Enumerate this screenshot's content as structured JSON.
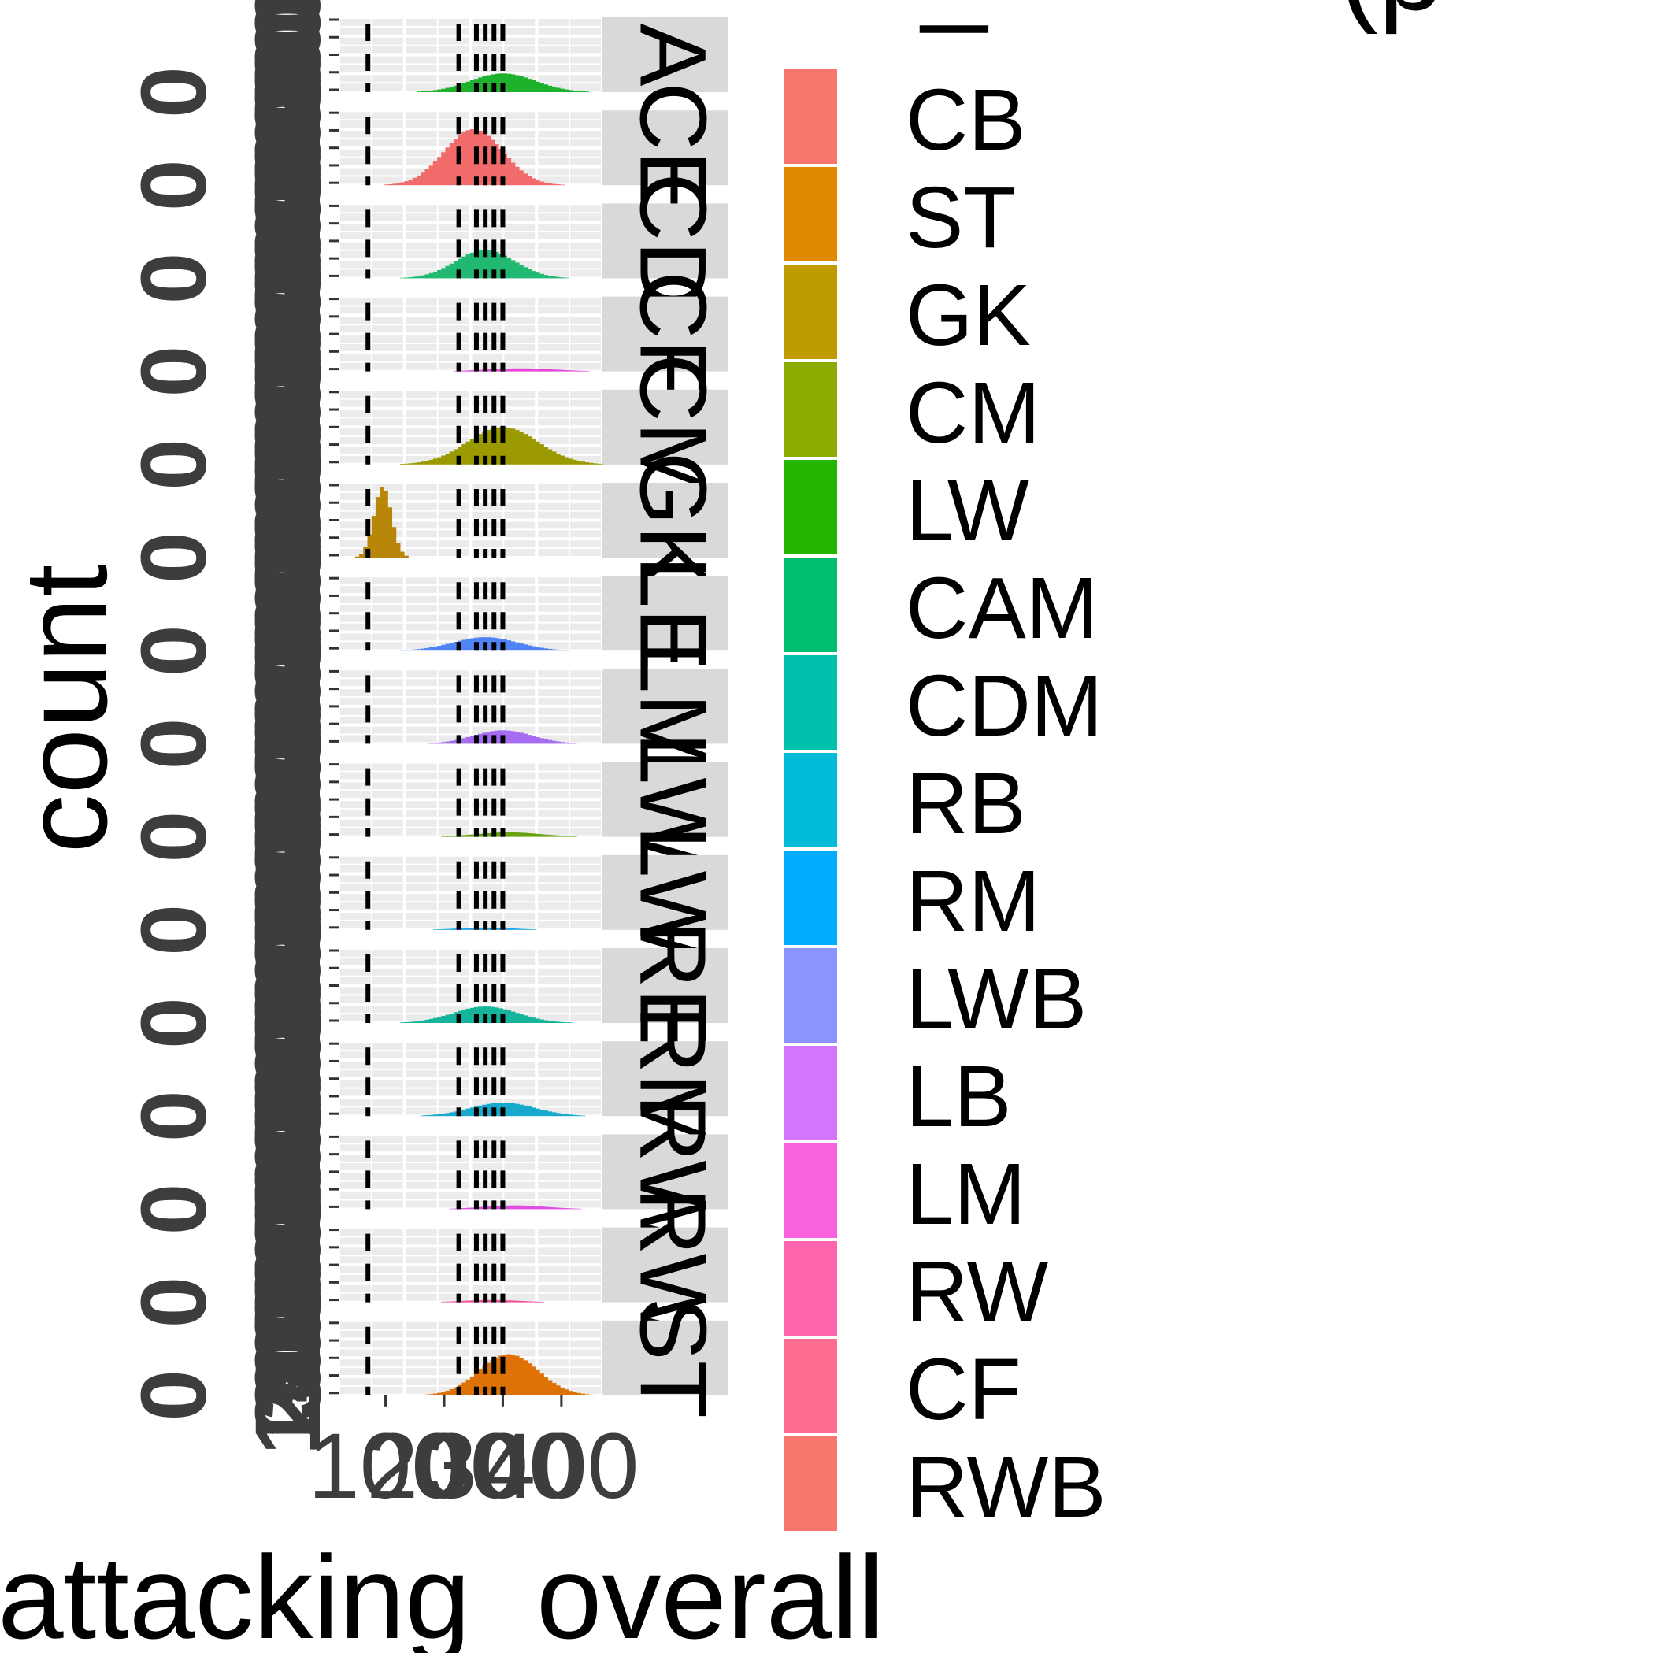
{
  "chart_data": {
    "type": "histogram",
    "xlabel": "attacking_overall",
    "ylabel": "count",
    "x_tick_labels": [
      "100",
      "200",
      "300",
      "400"
    ],
    "y_tick_labels": [
      "0",
      "100",
      "200",
      "300",
      "400"
    ],
    "legend_title_fragments": [
      "_",
      "(p"
    ],
    "facets": [
      {
        "label": "CAM",
        "series": "CAM",
        "shown": "A",
        "peak_x": 300,
        "spread": 55,
        "max_frac": 0.25
      },
      {
        "label": "CB",
        "series": "CB",
        "shown": "CE",
        "peak_x": 250,
        "spread": 50,
        "max_frac": 0.75
      },
      {
        "label": "CDM",
        "series": "CDM",
        "shown": "CD",
        "peak_x": 270,
        "spread": 50,
        "max_frac": 0.38
      },
      {
        "label": "CF",
        "series": "CF",
        "shown": "CF",
        "peak_x": 330,
        "spread": 60,
        "max_frac": 0.04
      },
      {
        "label": "CM",
        "series": "CM",
        "shown": "CM",
        "peak_x": 300,
        "spread": 60,
        "max_frac": 0.5
      },
      {
        "label": "GK",
        "series": "GK",
        "shown": "GK",
        "peak_x": 95,
        "spread": 15,
        "max_frac": 0.95
      },
      {
        "label": "LB",
        "series": "LB",
        "shown": "LE",
        "peak_x": 270,
        "spread": 55,
        "max_frac": 0.18
      },
      {
        "label": "LM",
        "series": "LM",
        "shown": "LM",
        "peak_x": 300,
        "spread": 50,
        "max_frac": 0.18
      },
      {
        "label": "LW",
        "series": "LW",
        "shown": "LW",
        "peak_x": 310,
        "spread": 55,
        "max_frac": 0.06
      },
      {
        "label": "LWB",
        "series": "LWB",
        "shown": "LW",
        "peak_x": 270,
        "spread": 50,
        "max_frac": 0.03
      },
      {
        "label": "RB",
        "series": "RB",
        "shown": "RE",
        "peak_x": 270,
        "spread": 55,
        "max_frac": 0.22
      },
      {
        "label": "RM",
        "series": "RM",
        "shown": "RM",
        "peak_x": 300,
        "spread": 55,
        "max_frac": 0.18
      },
      {
        "label": "RW",
        "series": "RW",
        "shown": "RW",
        "peak_x": 320,
        "spread": 55,
        "max_frac": 0.05
      },
      {
        "label": "RWB",
        "series": "RWB",
        "shown": "RW",
        "peak_x": 280,
        "spread": 50,
        "max_frac": 0.03
      },
      {
        "label": "ST",
        "series": "ST",
        "shown": "ST",
        "peak_x": 310,
        "spread": 50,
        "max_frac": 0.55
      }
    ],
    "vlines_x": [
      70,
      225,
      255,
      270,
      285,
      300
    ],
    "x_range": [
      20,
      470
    ],
    "legend": {
      "position": "right",
      "items": [
        {
          "label": "CB",
          "color": "#F8766D"
        },
        {
          "label": "ST",
          "color": "#E18A00"
        },
        {
          "label": "GK",
          "color": "#BE9C00"
        },
        {
          "label": "CM",
          "color": "#8CAB00"
        },
        {
          "label": "LW",
          "color": "#24B700"
        },
        {
          "label": "CAM",
          "color": "#00BE70"
        },
        {
          "label": "CDM",
          "color": "#00C1AB"
        },
        {
          "label": "RB",
          "color": "#00BBDA"
        },
        {
          "label": "RM",
          "color": "#00ACFC"
        },
        {
          "label": "LWB",
          "color": "#8B93FF"
        },
        {
          "label": "LB",
          "color": "#D575FE"
        },
        {
          "label": "LM",
          "color": "#F962DD"
        },
        {
          "label": "RW",
          "color": "#FF65AC"
        },
        {
          "label": "CF",
          "color": "#FF6C91"
        },
        {
          "label": "RWB",
          "color": "#F8766D"
        }
      ]
    },
    "series_colors": {
      "CAM": "#1DB12C",
      "CB": "#F26B6B",
      "CDM": "#21B872",
      "CF": "#E545D8",
      "CM": "#9A9A00",
      "GK": "#B8870A",
      "LB": "#5083F5",
      "LM": "#A56CF2",
      "LW": "#67A30E",
      "LWB": "#1AA3E5",
      "RB": "#16B49B",
      "RM": "#17A9CB",
      "RW": "#DE4FE2",
      "RWB": "#F0509C",
      "ST": "#DE7206"
    },
    "grid": true,
    "panel_background": "#EBEBEB",
    "strip_background": "#D9D9D9"
  }
}
